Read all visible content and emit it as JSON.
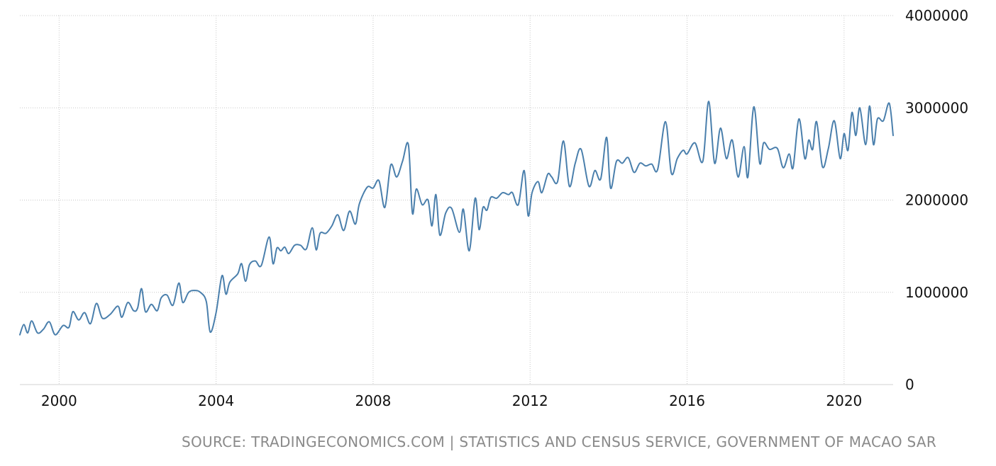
{
  "source": "SOURCE: TRADINGECONOMICS.COM | STATISTICS AND CENSUS SERVICE, GOVERNMENT OF MACAO SAR",
  "chart_data": {
    "type": "line",
    "title": "",
    "xlabel": "",
    "ylabel": "",
    "xlim": [
      1999.0,
      2021.25
    ],
    "ylim": [
      0,
      4000000
    ],
    "x_ticks": [
      2000,
      2004,
      2008,
      2012,
      2016,
      2020
    ],
    "y_ticks": [
      0,
      1000000,
      2000000,
      3000000,
      4000000
    ],
    "y_axis_position": "right",
    "grid": true,
    "legend": "none",
    "line_color": "#4a7fac",
    "series": [
      {
        "values": [
          [
            1999.0,
            540000
          ],
          [
            1999.1,
            650000
          ],
          [
            1999.2,
            560000
          ],
          [
            1999.3,
            690000
          ],
          [
            1999.45,
            560000
          ],
          [
            1999.6,
            600000
          ],
          [
            1999.75,
            680000
          ],
          [
            1999.9,
            540000
          ],
          [
            2000.1,
            640000
          ],
          [
            2000.25,
            620000
          ],
          [
            2000.35,
            790000
          ],
          [
            2000.5,
            700000
          ],
          [
            2000.65,
            780000
          ],
          [
            2000.8,
            660000
          ],
          [
            2000.95,
            880000
          ],
          [
            2001.1,
            720000
          ],
          [
            2001.3,
            760000
          ],
          [
            2001.5,
            850000
          ],
          [
            2001.6,
            730000
          ],
          [
            2001.75,
            890000
          ],
          [
            2001.9,
            800000
          ],
          [
            2002.0,
            830000
          ],
          [
            2002.1,
            1040000
          ],
          [
            2002.2,
            790000
          ],
          [
            2002.35,
            870000
          ],
          [
            2002.5,
            800000
          ],
          [
            2002.6,
            940000
          ],
          [
            2002.75,
            970000
          ],
          [
            2002.9,
            860000
          ],
          [
            2003.05,
            1100000
          ],
          [
            2003.15,
            890000
          ],
          [
            2003.3,
            1000000
          ],
          [
            2003.45,
            1020000
          ],
          [
            2003.6,
            1000000
          ],
          [
            2003.75,
            900000
          ],
          [
            2003.85,
            570000
          ],
          [
            2004.0,
            780000
          ],
          [
            2004.15,
            1180000
          ],
          [
            2004.25,
            980000
          ],
          [
            2004.35,
            1110000
          ],
          [
            2004.55,
            1200000
          ],
          [
            2004.65,
            1310000
          ],
          [
            2004.75,
            1120000
          ],
          [
            2004.85,
            1300000
          ],
          [
            2005.0,
            1340000
          ],
          [
            2005.15,
            1290000
          ],
          [
            2005.35,
            1600000
          ],
          [
            2005.45,
            1310000
          ],
          [
            2005.55,
            1480000
          ],
          [
            2005.65,
            1450000
          ],
          [
            2005.75,
            1490000
          ],
          [
            2005.85,
            1420000
          ],
          [
            2006.0,
            1510000
          ],
          [
            2006.15,
            1510000
          ],
          [
            2006.3,
            1470000
          ],
          [
            2006.45,
            1700000
          ],
          [
            2006.55,
            1460000
          ],
          [
            2006.65,
            1640000
          ],
          [
            2006.8,
            1640000
          ],
          [
            2006.95,
            1720000
          ],
          [
            2007.1,
            1840000
          ],
          [
            2007.25,
            1670000
          ],
          [
            2007.4,
            1880000
          ],
          [
            2007.55,
            1740000
          ],
          [
            2007.65,
            1960000
          ],
          [
            2007.85,
            2140000
          ],
          [
            2008.0,
            2130000
          ],
          [
            2008.15,
            2210000
          ],
          [
            2008.3,
            1920000
          ],
          [
            2008.45,
            2380000
          ],
          [
            2008.6,
            2250000
          ],
          [
            2008.75,
            2420000
          ],
          [
            2008.9,
            2600000
          ],
          [
            2009.0,
            1860000
          ],
          [
            2009.1,
            2120000
          ],
          [
            2009.25,
            1950000
          ],
          [
            2009.4,
            2000000
          ],
          [
            2009.5,
            1720000
          ],
          [
            2009.6,
            2060000
          ],
          [
            2009.7,
            1620000
          ],
          [
            2009.85,
            1860000
          ],
          [
            2010.0,
            1910000
          ],
          [
            2010.2,
            1650000
          ],
          [
            2010.3,
            1900000
          ],
          [
            2010.45,
            1450000
          ],
          [
            2010.6,
            2020000
          ],
          [
            2010.7,
            1680000
          ],
          [
            2010.8,
            1920000
          ],
          [
            2010.9,
            1890000
          ],
          [
            2011.0,
            2030000
          ],
          [
            2011.15,
            2020000
          ],
          [
            2011.3,
            2080000
          ],
          [
            2011.45,
            2060000
          ],
          [
            2011.55,
            2080000
          ],
          [
            2011.7,
            1950000
          ],
          [
            2011.85,
            2320000
          ],
          [
            2011.95,
            1830000
          ],
          [
            2012.05,
            2080000
          ],
          [
            2012.2,
            2200000
          ],
          [
            2012.3,
            2080000
          ],
          [
            2012.45,
            2280000
          ],
          [
            2012.55,
            2250000
          ],
          [
            2012.7,
            2200000
          ],
          [
            2012.85,
            2640000
          ],
          [
            2013.0,
            2150000
          ],
          [
            2013.15,
            2400000
          ],
          [
            2013.3,
            2550000
          ],
          [
            2013.5,
            2150000
          ],
          [
            2013.65,
            2320000
          ],
          [
            2013.8,
            2230000
          ],
          [
            2013.95,
            2680000
          ],
          [
            2014.05,
            2130000
          ],
          [
            2014.2,
            2420000
          ],
          [
            2014.35,
            2400000
          ],
          [
            2014.5,
            2460000
          ],
          [
            2014.65,
            2300000
          ],
          [
            2014.8,
            2400000
          ],
          [
            2014.95,
            2370000
          ],
          [
            2015.1,
            2390000
          ],
          [
            2015.25,
            2330000
          ],
          [
            2015.45,
            2850000
          ],
          [
            2015.6,
            2290000
          ],
          [
            2015.75,
            2450000
          ],
          [
            2015.9,
            2540000
          ],
          [
            2016.0,
            2500000
          ],
          [
            2016.2,
            2620000
          ],
          [
            2016.4,
            2420000
          ],
          [
            2016.55,
            3070000
          ],
          [
            2016.7,
            2400000
          ],
          [
            2016.85,
            2780000
          ],
          [
            2017.0,
            2450000
          ],
          [
            2017.15,
            2650000
          ],
          [
            2017.3,
            2250000
          ],
          [
            2017.45,
            2580000
          ],
          [
            2017.55,
            2250000
          ],
          [
            2017.7,
            3010000
          ],
          [
            2017.85,
            2400000
          ],
          [
            2017.95,
            2620000
          ],
          [
            2018.1,
            2550000
          ],
          [
            2018.3,
            2560000
          ],
          [
            2018.45,
            2350000
          ],
          [
            2018.6,
            2500000
          ],
          [
            2018.7,
            2350000
          ],
          [
            2018.85,
            2880000
          ],
          [
            2019.0,
            2450000
          ],
          [
            2019.1,
            2650000
          ],
          [
            2019.2,
            2550000
          ],
          [
            2019.3,
            2850000
          ],
          [
            2019.45,
            2360000
          ],
          [
            2019.6,
            2560000
          ],
          [
            2019.75,
            2860000
          ],
          [
            2019.9,
            2450000
          ],
          [
            2020.0,
            2720000
          ],
          [
            2020.1,
            2540000
          ],
          [
            2020.2,
            2950000
          ],
          [
            2020.3,
            2700000
          ],
          [
            2020.4,
            3000000
          ],
          [
            2020.55,
            2600000
          ],
          [
            2020.65,
            3020000
          ],
          [
            2020.75,
            2600000
          ],
          [
            2020.85,
            2880000
          ],
          [
            2021.0,
            2860000
          ],
          [
            2021.15,
            3050000
          ],
          [
            2021.25,
            2700000
          ]
        ]
      }
    ]
  }
}
